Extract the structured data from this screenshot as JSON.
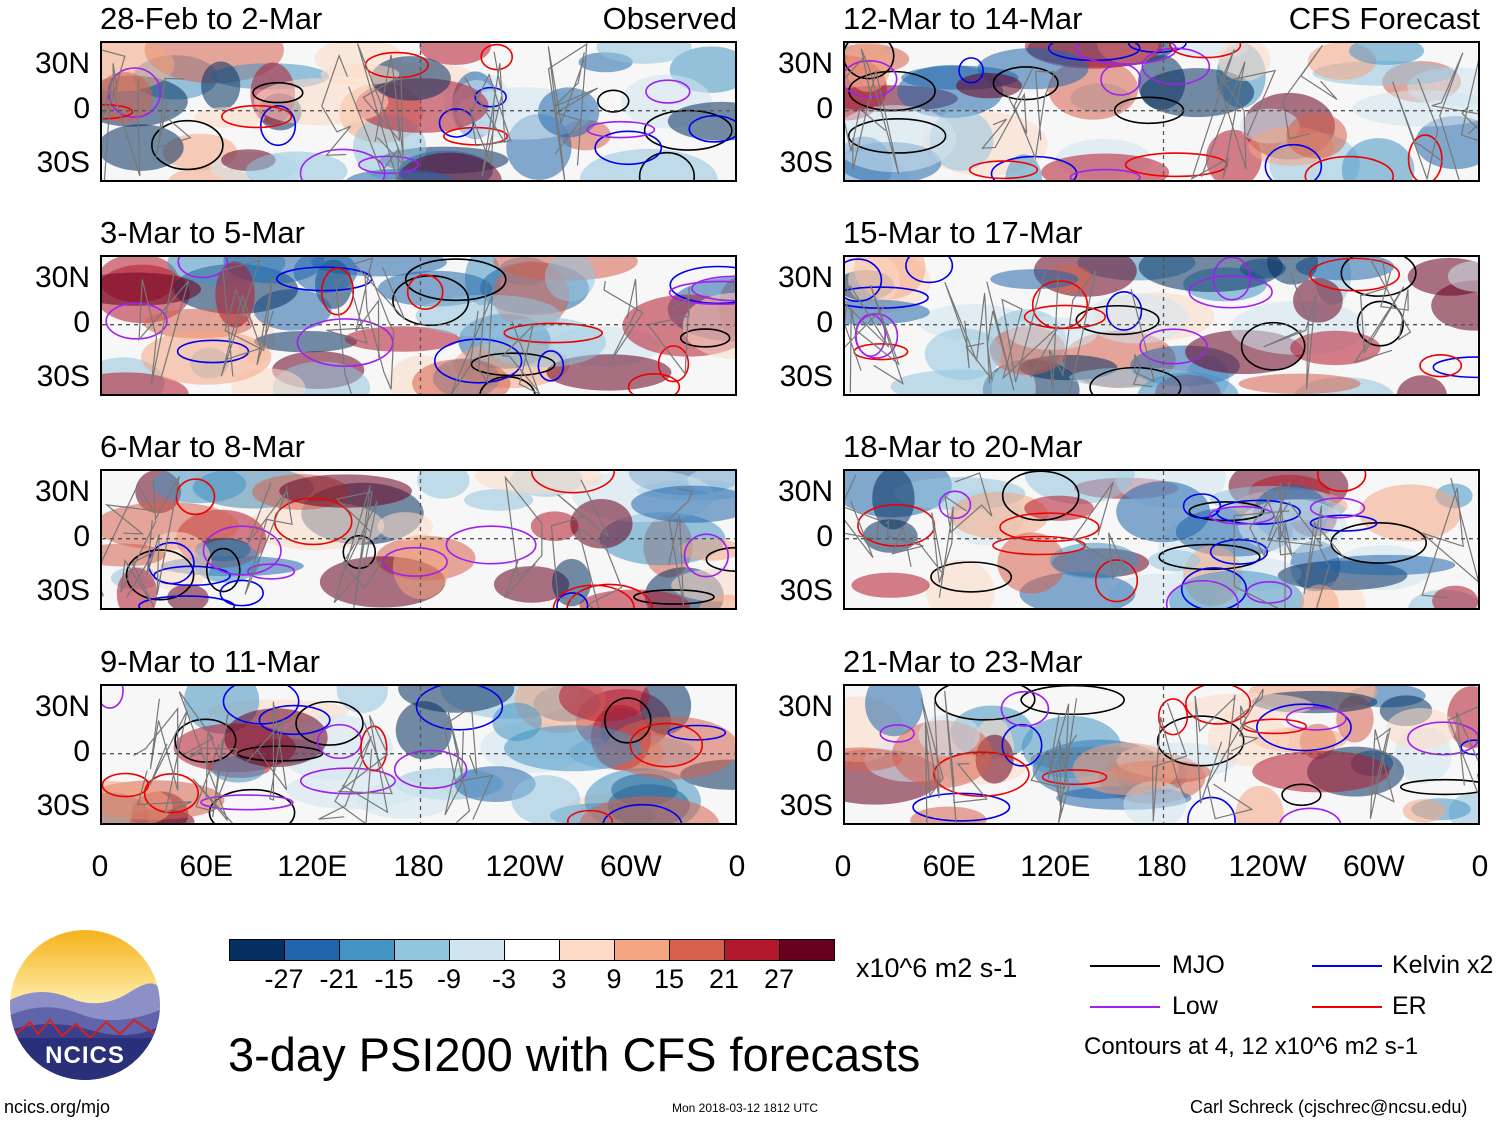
{
  "columns": [
    {
      "label_right": "Observed",
      "panels": [
        "28-Feb to 2-Mar",
        "3-Mar to 5-Mar",
        "6-Mar to 8-Mar",
        "9-Mar to 11-Mar"
      ]
    },
    {
      "label_right": "CFS Forecast",
      "panels": [
        "12-Mar to 14-Mar",
        "15-Mar to 17-Mar",
        "18-Mar to 20-Mar",
        "21-Mar to 23-Mar"
      ]
    }
  ],
  "lat_labels": [
    "30N",
    "0",
    "30S"
  ],
  "lon_labels": [
    "0",
    "60E",
    "120E",
    "180",
    "120W",
    "60W",
    "0"
  ],
  "colorbar": {
    "ticks": [
      "-27",
      "-21",
      "-15",
      "-9",
      "-3",
      "3",
      "9",
      "15",
      "21",
      "27"
    ],
    "colors": [
      "#053061",
      "#2166ac",
      "#4393c3",
      "#92c5de",
      "#d1e5f0",
      "#ffffff",
      "#fddbc7",
      "#f4a582",
      "#d6604d",
      "#b2182b",
      "#67001f"
    ],
    "units": "x10^6 m2 s-1"
  },
  "legend": {
    "items": [
      {
        "label": "MJO",
        "color": "#000000"
      },
      {
        "label": "Kelvin x2",
        "color": "#0000ee"
      },
      {
        "label": "Low",
        "color": "#a020f0"
      },
      {
        "label": "ER",
        "color": "#ee0000"
      }
    ],
    "contours_note": "Contours at 4, 12 x10^6 m2 s-1"
  },
  "title": "3-day PSI200 with CFS forecasts",
  "logo_text": "NCICS",
  "footer": {
    "url": "ncics.org/mjo",
    "timestamp": "Mon 2018-03-12 1812 UTC",
    "credit": "Carl Schreck (cjschrec@ncsu.edu)"
  }
}
